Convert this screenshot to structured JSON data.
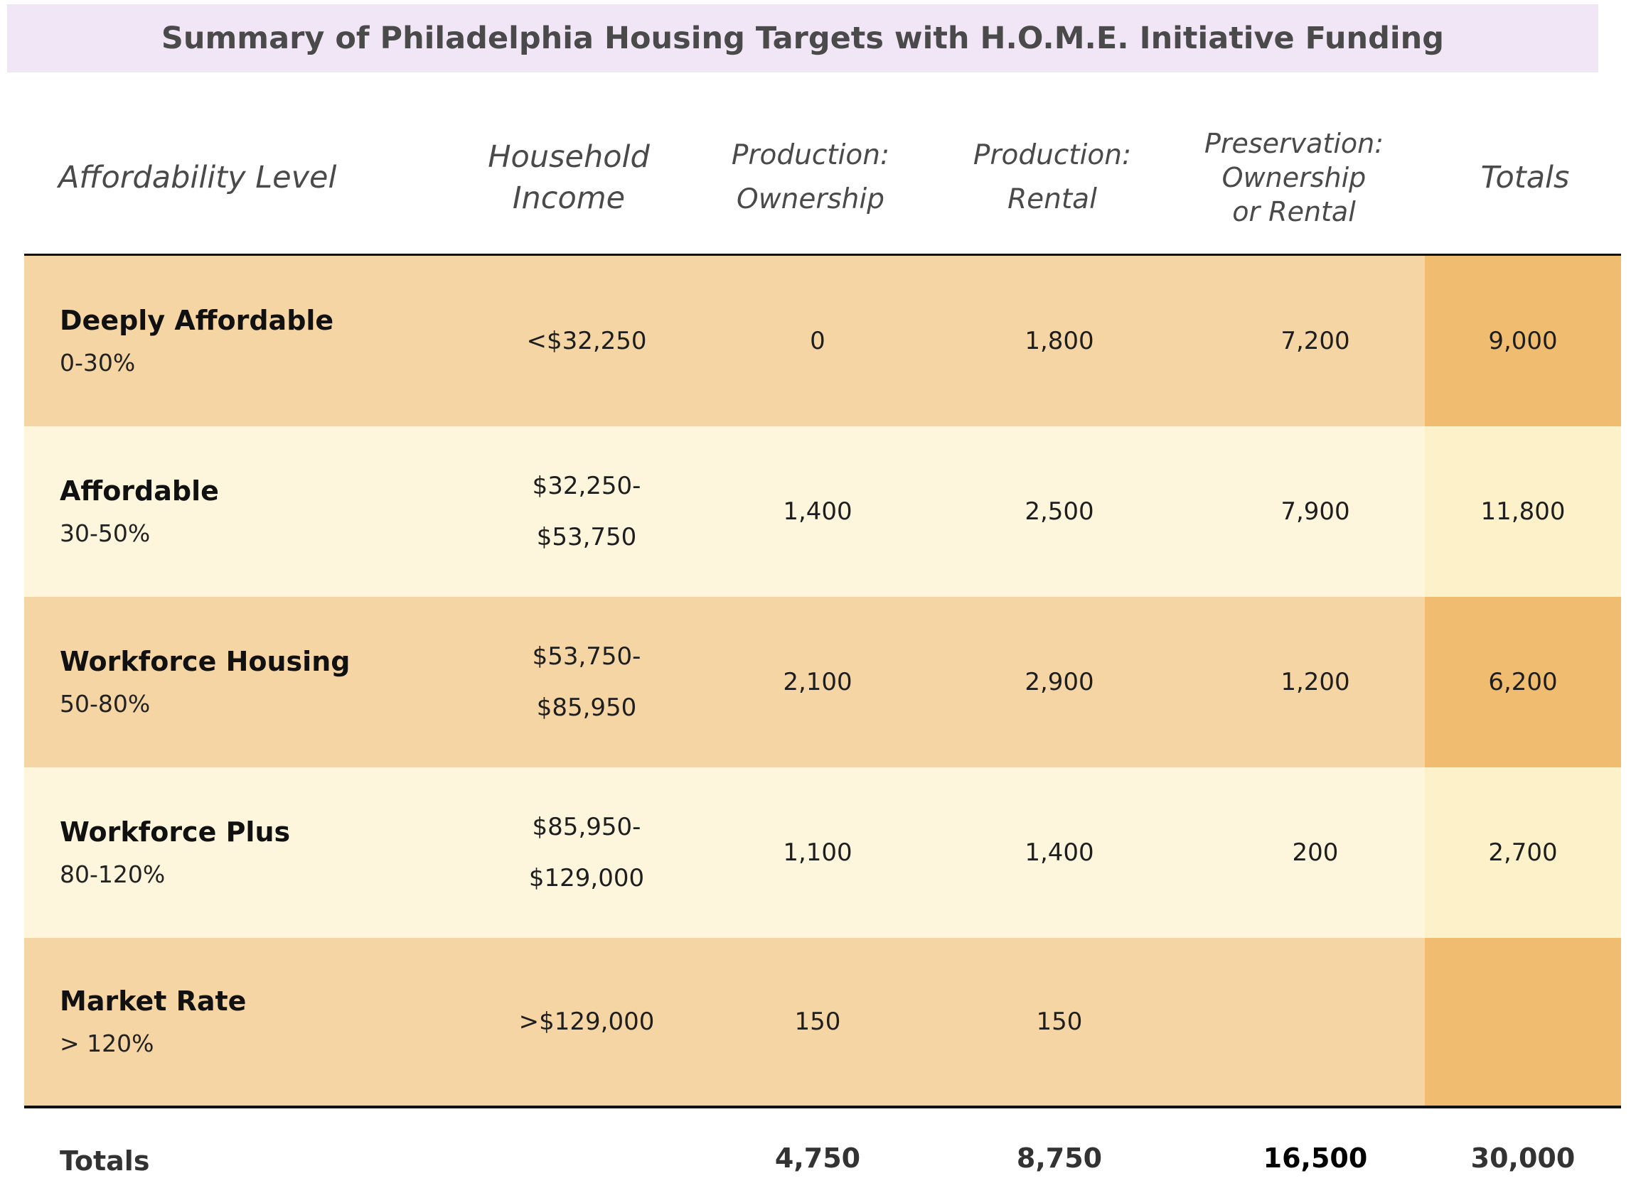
{
  "title": "Summary of Philadelphia Housing Targets with H.O.M.E. Initiative Funding",
  "headers": {
    "level": "Affordability Level",
    "income": "Household\nIncome",
    "prod_own": "Production:\nOwnership",
    "prod_rent": "Production:\nRental",
    "preservation": "Preservation:\nOwnership\nor Rental",
    "totals": "Totals"
  },
  "rows": [
    {
      "name": "Deeply Affordable",
      "pct": "0-30%",
      "income": "<$32,250",
      "prod_own": "0",
      "prod_rent": "1,800",
      "preservation": "7,200",
      "total": "9,000"
    },
    {
      "name": "Affordable",
      "pct": "30-50%",
      "income": "$32,250-\n$53,750",
      "prod_own": "1,400",
      "prod_rent": "2,500",
      "preservation": "7,900",
      "total": "11,800"
    },
    {
      "name": "Workforce Housing",
      "pct": "50-80%",
      "income": "$53,750-\n$85,950",
      "prod_own": "2,100",
      "prod_rent": "2,900",
      "preservation": "1,200",
      "total": "6,200"
    },
    {
      "name": "Workforce Plus",
      "pct": "80-120%",
      "income": "$85,950-\n$129,000",
      "prod_own": "1,100",
      "prod_rent": "1,400",
      "preservation": "200",
      "total": "2,700"
    },
    {
      "name": "Market Rate",
      "pct": "> 120%",
      "income": ">$129,000",
      "prod_own": "150",
      "prod_rent": "150",
      "preservation": "",
      "total": ""
    }
  ],
  "totals": {
    "label": "Totals",
    "prod_own": "4,750",
    "prod_rent": "8,750",
    "preservation": "16,500",
    "total": "30,000"
  },
  "colors": {
    "title_bg": "#f1e6f6",
    "row_dark": "#f5d5a4",
    "row_light": "#fdf5dc",
    "totals_col_dark": "#f0bc6f",
    "totals_col_light": "#fcf1c8"
  }
}
